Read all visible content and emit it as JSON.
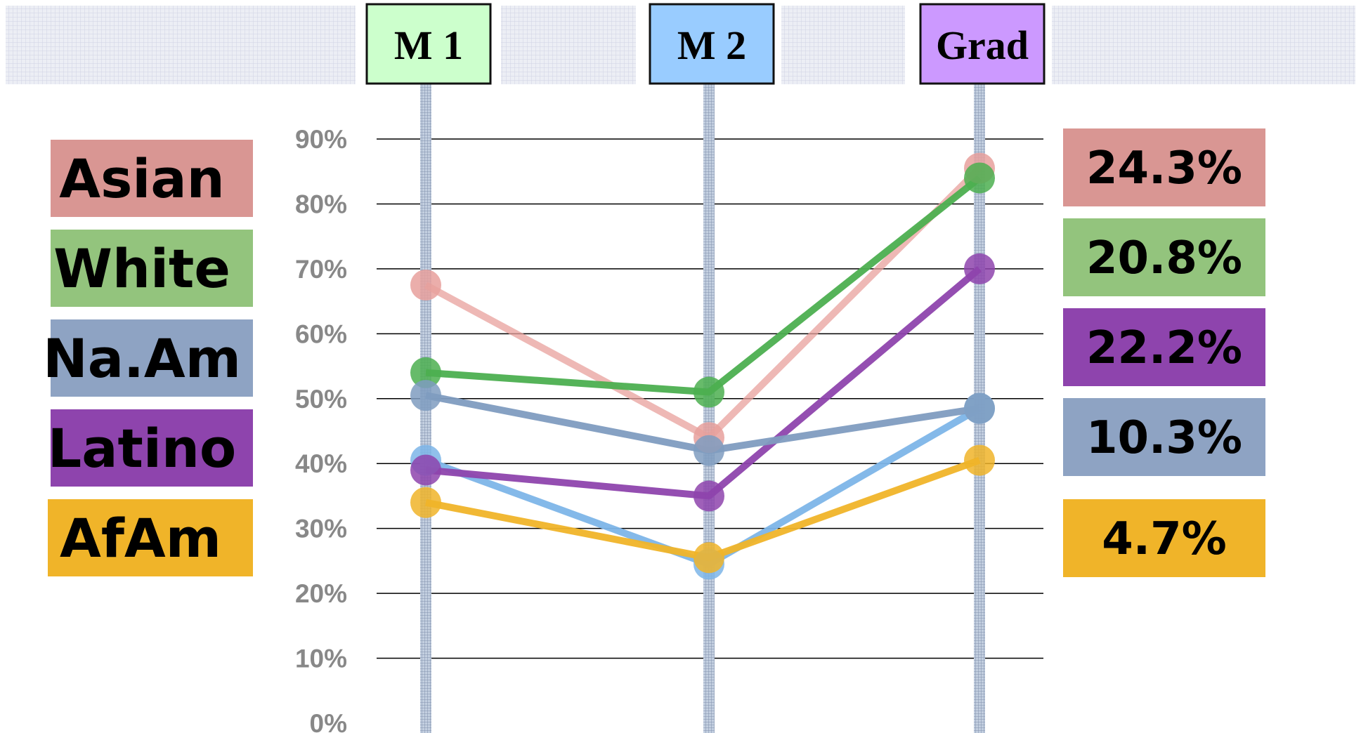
{
  "chart_data": {
    "type": "line",
    "categories": [
      "M 1",
      "M 2",
      "Grad"
    ],
    "category_colors": [
      "#ccffcc",
      "#99ccff",
      "#cc99ff"
    ],
    "y_ticks": [
      "0%",
      "10%",
      "20%",
      "30%",
      "40%",
      "50%",
      "60%",
      "70%",
      "80%",
      "90%"
    ],
    "ylim": [
      0,
      90
    ],
    "grid": true,
    "legend_position": "left",
    "value_labels_position": "right",
    "series": [
      {
        "name": "Asian",
        "color": "#e8a09c",
        "legend_color": "#d99693",
        "values": [
          67.5,
          44,
          85.5
        ],
        "value_label": "24.3%"
      },
      {
        "name": "White",
        "color": "#4caf50",
        "legend_color": "#93c47d",
        "values": [
          54,
          51,
          84
        ],
        "value_label": "20.8%"
      },
      {
        "name": "Na.Am",
        "color": "#7f9cc0",
        "legend_color": "#8ea3c3",
        "values": [
          50.5,
          42,
          48.5
        ],
        "value_label": "10.3%"
      },
      {
        "name": "Latino",
        "color": "#8e44ad",
        "legend_color": "#8e44ad",
        "values": [
          39,
          35,
          70
        ],
        "value_label": "22.2%"
      },
      {
        "name": "AfAm",
        "color": "#f0b429",
        "legend_color": "#f0b429",
        "values": [
          34,
          25.5,
          40.5
        ],
        "value_label": "4.7%"
      }
    ],
    "extra_series": [
      {
        "color": "#7db5e8",
        "values": [
          40.5,
          24.5,
          48.5
        ]
      }
    ]
  }
}
